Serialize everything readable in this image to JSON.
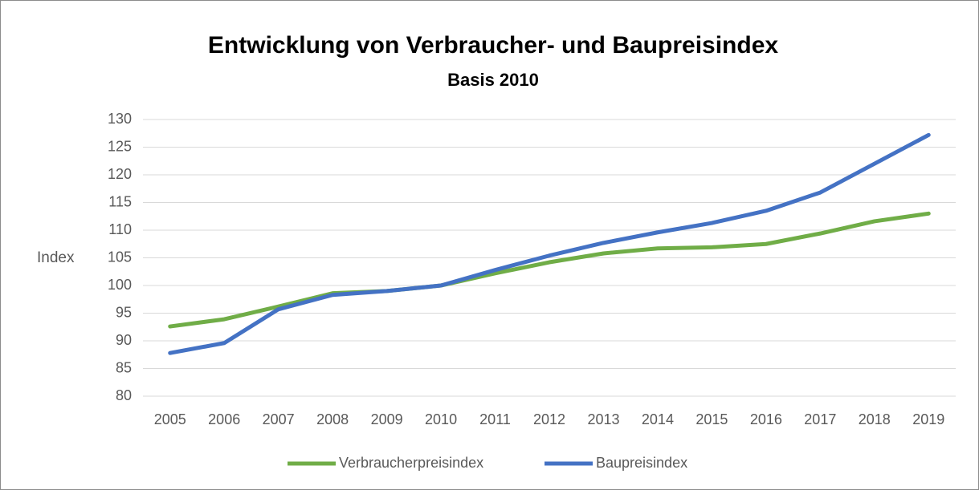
{
  "chart_data": {
    "type": "line",
    "title": "Entwicklung von Verbraucher- und Baupreisindex",
    "subtitle": "Basis 2010",
    "y_label": "Index",
    "categories": [
      "2005",
      "2006",
      "2007",
      "2008",
      "2009",
      "2010",
      "2011",
      "2012",
      "2013",
      "2014",
      "2015",
      "2016",
      "2017",
      "2018",
      "2019"
    ],
    "series": [
      {
        "name": "Verbraucherpreisindex",
        "color": "#70ad47",
        "values": [
          92.6,
          93.9,
          96.2,
          98.6,
          99.0,
          100,
          102.2,
          104.2,
          105.8,
          106.7,
          106.9,
          107.5,
          109.4,
          111.6,
          113.0
        ]
      },
      {
        "name": "Baupreisindex",
        "color": "#4472c4",
        "values": [
          87.8,
          89.6,
          95.7,
          98.3,
          99.0,
          100,
          102.8,
          105.4,
          107.7,
          109.6,
          111.3,
          113.5,
          116.8,
          122.0,
          127.2
        ]
      }
    ],
    "ylim": [
      80,
      130
    ],
    "yticks": [
      80,
      85,
      90,
      95,
      100,
      105,
      110,
      115,
      120,
      125,
      130
    ],
    "grid": true,
    "legend": "bottom"
  }
}
